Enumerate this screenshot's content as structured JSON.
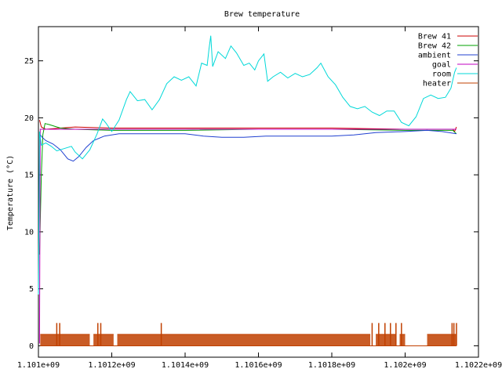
{
  "chart_data": {
    "type": "line",
    "title": "Brew temperature",
    "xlabel": "",
    "ylabel": "Temperature (°C)",
    "xlim": [
      1101000000,
      1102200000
    ],
    "ylim": [
      -1,
      28
    ],
    "x_ticks": [
      1101000000,
      1101200000,
      1101400000,
      1101600000,
      1101800000,
      1102000000,
      1102200000
    ],
    "x_tick_labels": [
      "1.101e+09",
      "1.1012e+09",
      "1.1014e+09",
      "1.1016e+09",
      "1.1018e+09",
      "1.102e+09",
      "1.1022e+09"
    ],
    "y_ticks": [
      0,
      5,
      10,
      15,
      20,
      25
    ],
    "y_tick_labels": [
      "0",
      "5",
      "10",
      "15",
      "20",
      "25"
    ],
    "grid": false,
    "legend_position": "top-right",
    "series": [
      {
        "name": "Brew 41",
        "color": "#cc0000",
        "points": [
          [
            1101003000,
            19.8
          ],
          [
            1101008000,
            19.2
          ],
          [
            1101020000,
            19.0
          ],
          [
            1101060000,
            19.1
          ],
          [
            1101100000,
            19.2
          ],
          [
            1101200000,
            19.1
          ],
          [
            1101400000,
            19.1
          ],
          [
            1101600000,
            19.1
          ],
          [
            1101800000,
            19.1
          ],
          [
            1102000000,
            19.0
          ],
          [
            1102130000,
            19.0
          ],
          [
            1102135000,
            18.8
          ],
          [
            1102140000,
            19.2
          ]
        ]
      },
      {
        "name": "Brew 42",
        "color": "#00a000",
        "points": [
          [
            1101003000,
            8.0
          ],
          [
            1101008000,
            15.0
          ],
          [
            1101012000,
            18.5
          ],
          [
            1101018000,
            19.5
          ],
          [
            1101030000,
            19.4
          ],
          [
            1101060000,
            19.1
          ],
          [
            1101100000,
            19.0
          ],
          [
            1101200000,
            18.9
          ],
          [
            1101400000,
            18.9
          ],
          [
            1101600000,
            19.0
          ],
          [
            1101800000,
            19.0
          ],
          [
            1102000000,
            18.9
          ],
          [
            1102130000,
            18.9
          ],
          [
            1102140000,
            18.6
          ]
        ]
      },
      {
        "name": "ambient",
        "color": "#2040d0",
        "points": [
          [
            1101003000,
            18.6
          ],
          [
            1101010000,
            18.3
          ],
          [
            1101020000,
            18.0
          ],
          [
            1101040000,
            17.7
          ],
          [
            1101060000,
            17.2
          ],
          [
            1101080000,
            16.4
          ],
          [
            1101095000,
            16.2
          ],
          [
            1101110000,
            16.6
          ],
          [
            1101130000,
            17.4
          ],
          [
            1101150000,
            18.0
          ],
          [
            1101180000,
            18.4
          ],
          [
            1101220000,
            18.6
          ],
          [
            1101300000,
            18.6
          ],
          [
            1101400000,
            18.6
          ],
          [
            1101450000,
            18.4
          ],
          [
            1101500000,
            18.3
          ],
          [
            1101560000,
            18.3
          ],
          [
            1101620000,
            18.4
          ],
          [
            1101700000,
            18.4
          ],
          [
            1101800000,
            18.4
          ],
          [
            1101860000,
            18.5
          ],
          [
            1101920000,
            18.7
          ],
          [
            1102000000,
            18.8
          ],
          [
            1102060000,
            18.9
          ],
          [
            1102100000,
            18.8
          ],
          [
            1102140000,
            18.6
          ]
        ]
      },
      {
        "name": "goal",
        "color": "#c000c0",
        "points": [
          [
            1101003000,
            0.2
          ],
          [
            1101005000,
            19.0
          ],
          [
            1101100000,
            19.0
          ],
          [
            1101400000,
            19.0
          ],
          [
            1101800000,
            19.0
          ],
          [
            1102140000,
            19.0
          ]
        ]
      },
      {
        "name": "room",
        "color": "#00d8d8",
        "points": [
          [
            1101000000,
            4.5
          ],
          [
            1101003000,
            18.8
          ],
          [
            1101008000,
            17.6
          ],
          [
            1101020000,
            17.8
          ],
          [
            1101035000,
            17.5
          ],
          [
            1101050000,
            17.1
          ],
          [
            1101070000,
            17.3
          ],
          [
            1101090000,
            17.5
          ],
          [
            1101100000,
            17.0
          ],
          [
            1101120000,
            16.4
          ],
          [
            1101140000,
            17.2
          ],
          [
            1101160000,
            18.6
          ],
          [
            1101175000,
            19.9
          ],
          [
            1101185000,
            19.5
          ],
          [
            1101200000,
            18.8
          ],
          [
            1101220000,
            19.8
          ],
          [
            1101240000,
            21.6
          ],
          [
            1101250000,
            22.3
          ],
          [
            1101270000,
            21.5
          ],
          [
            1101290000,
            21.6
          ],
          [
            1101310000,
            20.7
          ],
          [
            1101330000,
            21.6
          ],
          [
            1101350000,
            23.0
          ],
          [
            1101370000,
            23.6
          ],
          [
            1101390000,
            23.3
          ],
          [
            1101410000,
            23.6
          ],
          [
            1101430000,
            22.8
          ],
          [
            1101445000,
            24.8
          ],
          [
            1101460000,
            24.6
          ],
          [
            1101465000,
            26.0
          ],
          [
            1101470000,
            27.2
          ],
          [
            1101475000,
            24.5
          ],
          [
            1101490000,
            25.8
          ],
          [
            1101510000,
            25.2
          ],
          [
            1101525000,
            26.3
          ],
          [
            1101540000,
            25.7
          ],
          [
            1101560000,
            24.6
          ],
          [
            1101575000,
            24.8
          ],
          [
            1101590000,
            24.2
          ],
          [
            1101600000,
            25.0
          ],
          [
            1101615000,
            25.6
          ],
          [
            1101625000,
            23.2
          ],
          [
            1101640000,
            23.6
          ],
          [
            1101660000,
            24.0
          ],
          [
            1101680000,
            23.5
          ],
          [
            1101700000,
            23.9
          ],
          [
            1101720000,
            23.6
          ],
          [
            1101740000,
            23.8
          ],
          [
            1101760000,
            24.4
          ],
          [
            1101770000,
            24.8
          ],
          [
            1101790000,
            23.6
          ],
          [
            1101810000,
            22.9
          ],
          [
            1101830000,
            21.8
          ],
          [
            1101850000,
            21.0
          ],
          [
            1101870000,
            20.8
          ],
          [
            1101890000,
            21.0
          ],
          [
            1101910000,
            20.5
          ],
          [
            1101930000,
            20.2
          ],
          [
            1101950000,
            20.6
          ],
          [
            1101970000,
            20.6
          ],
          [
            1101990000,
            19.6
          ],
          [
            1102010000,
            19.3
          ],
          [
            1102030000,
            20.1
          ],
          [
            1102050000,
            21.7
          ],
          [
            1102070000,
            22.0
          ],
          [
            1102090000,
            21.7
          ],
          [
            1102110000,
            21.8
          ],
          [
            1102125000,
            22.6
          ],
          [
            1102135000,
            24.0
          ],
          [
            1102140000,
            24.4
          ]
        ]
      },
      {
        "name": "heater",
        "color": "#c04000",
        "baseline": 0,
        "on_level": 1,
        "spike_level": 2,
        "active_ranges": [
          [
            1101005000,
            1101140000
          ],
          [
            1101150000,
            1101205000
          ],
          [
            1101215000,
            1101905000
          ],
          [
            1101920000,
            1101975000
          ],
          [
            1101985000,
            1102000000
          ],
          [
            1102060000,
            1102140000
          ]
        ],
        "spikes": [
          1101050000,
          1101058000,
          1101162000,
          1101170000,
          1101335000,
          1101910000,
          1101928000,
          1101945000,
          1101960000,
          1101975000,
          1101990000,
          1102128000,
          1102133000,
          1102140000
        ]
      }
    ]
  }
}
